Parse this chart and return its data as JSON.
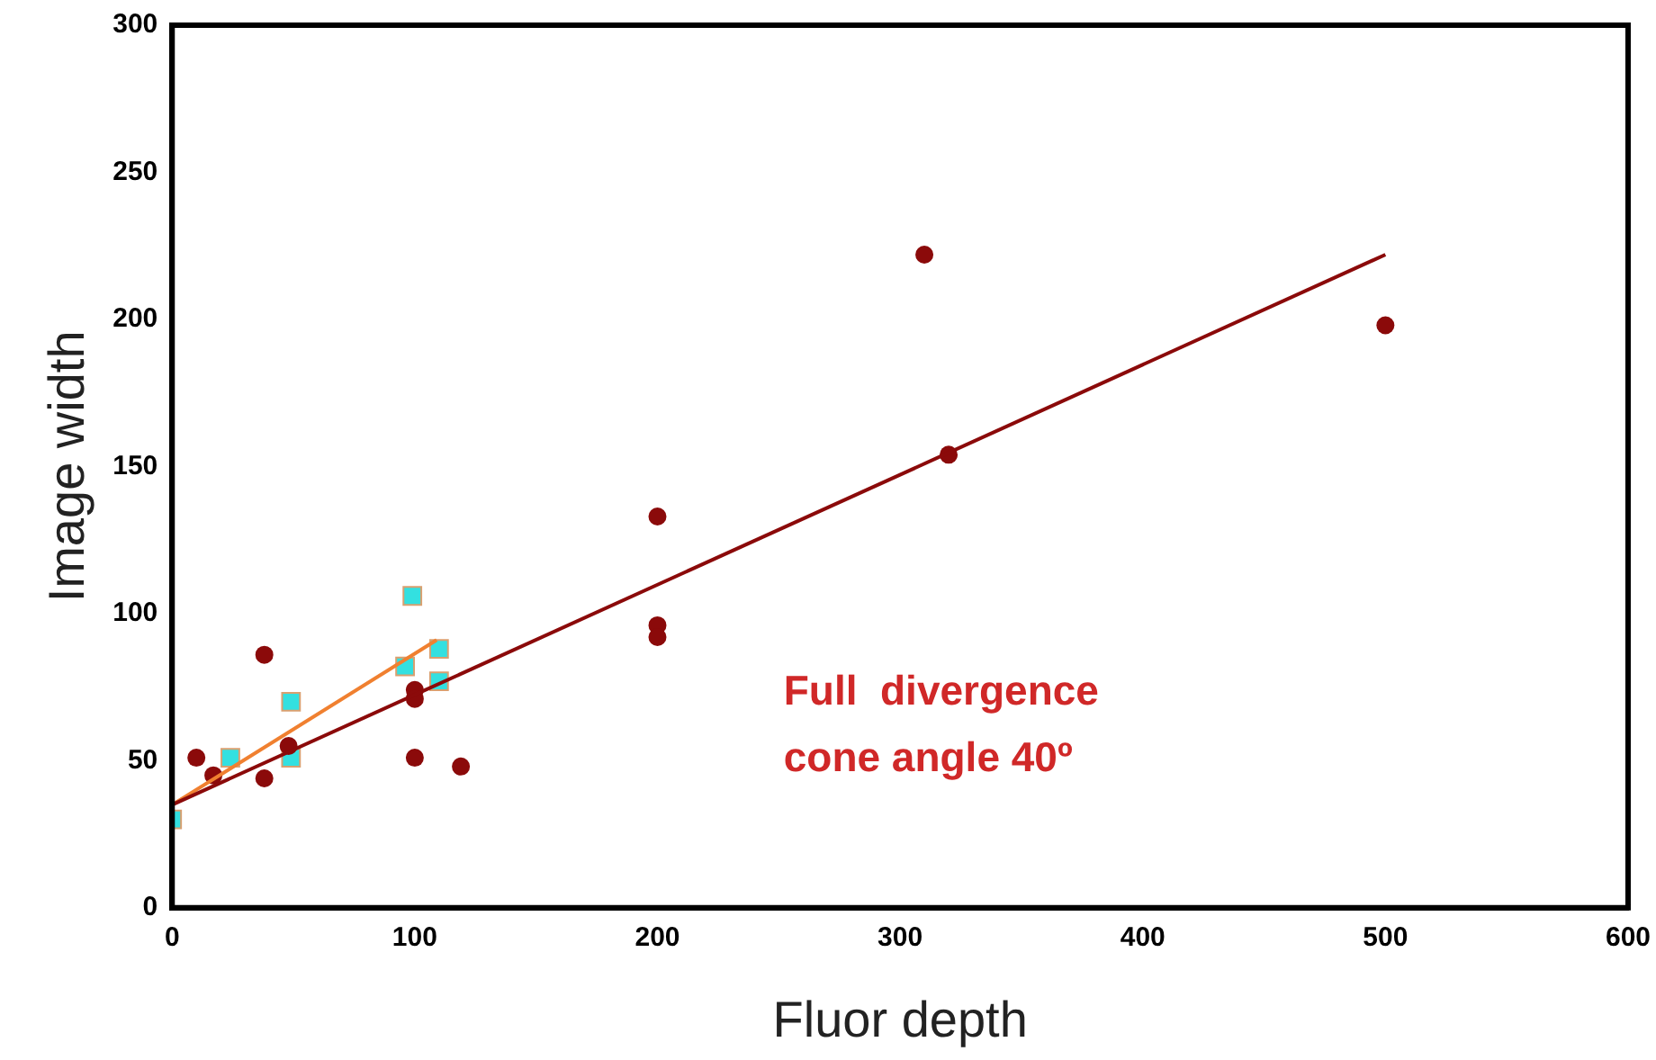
{
  "chart_data": {
    "type": "scatter",
    "xlabel": "Fluor depth",
    "ylabel": "Image width",
    "xlim": [
      0,
      600
    ],
    "xticks": [
      0,
      100,
      200,
      300,
      400,
      500,
      600
    ],
    "ylim": [
      0,
      300
    ],
    "yticks": [
      0,
      50,
      100,
      150,
      200,
      250,
      300
    ],
    "grid": false,
    "legend": false,
    "annotations": [
      "Full  divergence\ncone angle 40º"
    ],
    "series": [
      {
        "marker": "circle",
        "color": "#8b0a0a",
        "x": [
          10,
          17,
          38,
          38,
          48,
          100,
          100,
          100,
          119,
          200,
          200,
          200,
          310,
          320,
          500
        ],
        "values": [
          51,
          45,
          86,
          44,
          55,
          74,
          71,
          51,
          48,
          133,
          96,
          92,
          222,
          154,
          198
        ]
      },
      {
        "marker": "square",
        "color": "#33e0e0",
        "x": [
          0,
          24,
          49,
          49,
          99,
          96,
          110,
          110
        ],
        "values": [
          30,
          51,
          51,
          70,
          106,
          82,
          88,
          77
        ]
      },
      {
        "type": "line",
        "marker": "none",
        "color": "#8b0a0a",
        "x": [
          0,
          500
        ],
        "values": [
          35,
          222
        ]
      },
      {
        "type": "line",
        "marker": "none",
        "color": "#f08030",
        "x": [
          0,
          109
        ],
        "values": [
          35,
          91
        ]
      }
    ]
  }
}
